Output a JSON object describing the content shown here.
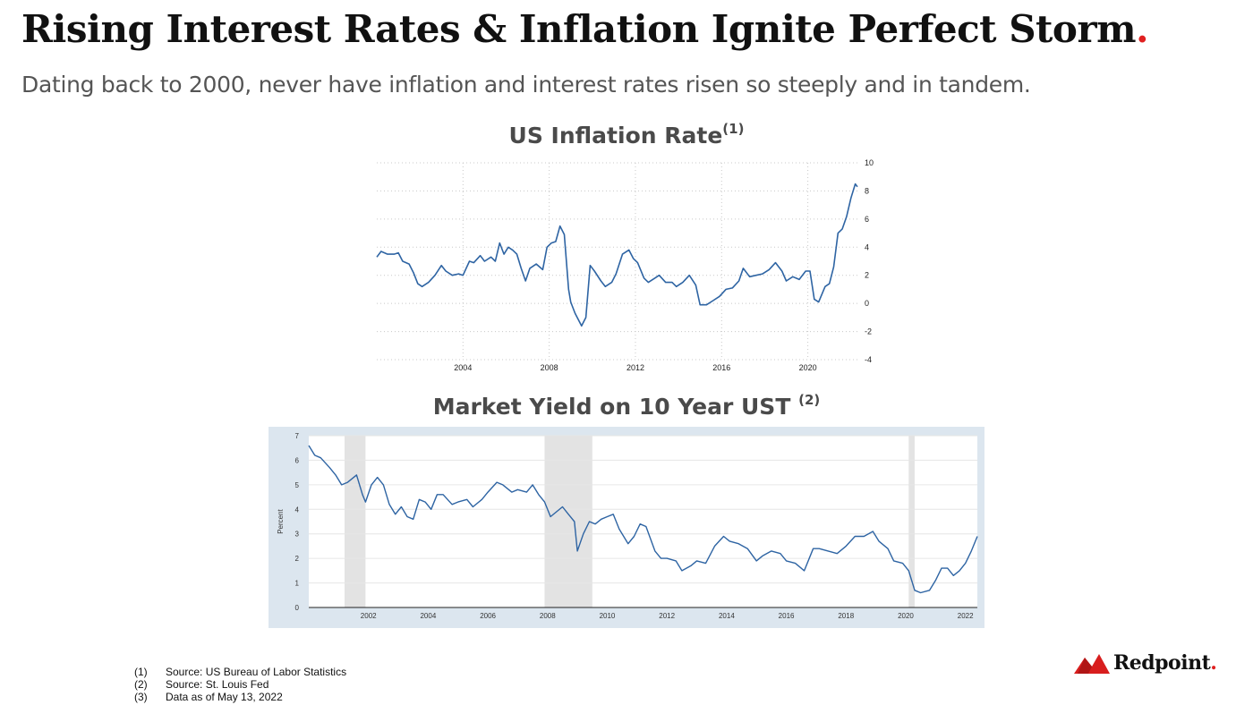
{
  "header": {
    "title": "Rising Interest Rates & Inflation Ignite Perfect Storm",
    "title_dot": ".",
    "subtitle": "Dating back to 2000, never have inflation and interest rates risen so steeply and in tandem."
  },
  "colors": {
    "accent_red": "#e02020",
    "line_blue": "#2e64a3",
    "recession_gray": "#e3e3e3",
    "yield_frame": "#dce6ef"
  },
  "chart_data": [
    {
      "type": "line",
      "title": "US Inflation Rate",
      "title_note": "(1)",
      "xlabel": "",
      "ylabel": "",
      "xlim": [
        2000.0,
        2022.3
      ],
      "ylim": [
        -4,
        10
      ],
      "xticks": [
        "2004",
        "2008",
        "2012",
        "2016",
        "2020"
      ],
      "yticks": [
        "10",
        "8",
        "6",
        "4",
        "2",
        "0",
        "-2",
        "-4"
      ],
      "y_axis_side": "right",
      "grid": "dotted horizontal",
      "series": [
        {
          "x": [
            2000.0,
            2000.2,
            2000.5,
            2000.8,
            2001.0,
            2001.2,
            2001.5,
            2001.7,
            2001.9,
            2002.1,
            2002.4,
            2002.7,
            2003.0,
            2003.2,
            2003.5,
            2003.8,
            2004.0,
            2004.3,
            2004.5,
            2004.8,
            2005.0,
            2005.3,
            2005.5,
            2005.7,
            2005.9,
            2006.1,
            2006.3,
            2006.5,
            2006.7,
            2006.9,
            2007.1,
            2007.4,
            2007.7,
            2007.9,
            2008.1,
            2008.3,
            2008.5,
            2008.7,
            2008.9,
            2009.0,
            2009.2,
            2009.5,
            2009.7,
            2009.9,
            2010.1,
            2010.4,
            2010.6,
            2010.9,
            2011.1,
            2011.4,
            2011.7,
            2011.9,
            2012.1,
            2012.4,
            2012.6,
            2012.9,
            2013.1,
            2013.4,
            2013.7,
            2013.9,
            2014.2,
            2014.5,
            2014.8,
            2015.0,
            2015.3,
            2015.6,
            2015.9,
            2016.2,
            2016.5,
            2016.8,
            2017.0,
            2017.3,
            2017.6,
            2017.9,
            2018.2,
            2018.5,
            2018.8,
            2019.0,
            2019.3,
            2019.6,
            2019.9,
            2020.1,
            2020.3,
            2020.5,
            2020.8,
            2021.0,
            2021.2,
            2021.4,
            2021.6,
            2021.8,
            2022.0,
            2022.2,
            2022.3
          ],
          "y": [
            3.3,
            3.7,
            3.5,
            3.5,
            3.6,
            3.0,
            2.8,
            2.2,
            1.4,
            1.2,
            1.5,
            2.0,
            2.7,
            2.3,
            2.0,
            2.1,
            2.0,
            3.0,
            2.9,
            3.4,
            3.0,
            3.3,
            3.0,
            4.3,
            3.5,
            4.0,
            3.8,
            3.5,
            2.5,
            1.6,
            2.5,
            2.8,
            2.4,
            4.0,
            4.3,
            4.4,
            5.5,
            4.9,
            1.0,
            0.1,
            -0.7,
            -1.6,
            -1.0,
            2.7,
            2.3,
            1.6,
            1.2,
            1.5,
            2.1,
            3.5,
            3.8,
            3.2,
            2.9,
            1.8,
            1.5,
            1.8,
            2.0,
            1.5,
            1.5,
            1.2,
            1.5,
            2.0,
            1.3,
            -0.1,
            -0.1,
            0.2,
            0.5,
            1.0,
            1.1,
            1.6,
            2.5,
            1.9,
            2.0,
            2.1,
            2.4,
            2.9,
            2.3,
            1.6,
            1.9,
            1.7,
            2.3,
            2.3,
            0.3,
            0.1,
            1.2,
            1.4,
            2.6,
            5.0,
            5.3,
            6.2,
            7.5,
            8.5,
            8.3
          ]
        }
      ]
    },
    {
      "type": "line",
      "title": "Market Yield on 10 Year UST",
      "title_note": "(2)",
      "xlabel": "",
      "ylabel": "Percent",
      "xlim": [
        2000.0,
        2022.4
      ],
      "ylim": [
        0,
        7
      ],
      "xticks": [
        "2002",
        "2004",
        "2006",
        "2008",
        "2010",
        "2012",
        "2014",
        "2016",
        "2018",
        "2020",
        "2022"
      ],
      "yticks": [
        "7",
        "6",
        "5",
        "4",
        "3",
        "2",
        "1",
        "0"
      ],
      "grid": "solid horizontal",
      "recession_bands": [
        [
          2001.2,
          2001.9
        ],
        [
          2007.9,
          2009.5
        ],
        [
          2020.1,
          2020.3
        ]
      ],
      "series": [
        {
          "x": [
            2000.0,
            2000.2,
            2000.4,
            2000.7,
            2000.9,
            2001.1,
            2001.3,
            2001.6,
            2001.8,
            2001.9,
            2002.1,
            2002.3,
            2002.5,
            2002.7,
            2002.9,
            2003.1,
            2003.3,
            2003.5,
            2003.7,
            2003.9,
            2004.1,
            2004.3,
            2004.5,
            2004.8,
            2005.0,
            2005.3,
            2005.5,
            2005.8,
            2006.0,
            2006.3,
            2006.5,
            2006.8,
            2007.0,
            2007.3,
            2007.5,
            2007.7,
            2007.9,
            2008.1,
            2008.3,
            2008.5,
            2008.7,
            2008.9,
            2009.0,
            2009.2,
            2009.4,
            2009.6,
            2009.8,
            2010.0,
            2010.2,
            2010.4,
            2010.7,
            2010.9,
            2011.1,
            2011.3,
            2011.6,
            2011.8,
            2012.0,
            2012.3,
            2012.5,
            2012.8,
            2013.0,
            2013.3,
            2013.6,
            2013.9,
            2014.1,
            2014.4,
            2014.7,
            2015.0,
            2015.2,
            2015.5,
            2015.8,
            2016.0,
            2016.3,
            2016.6,
            2016.9,
            2017.1,
            2017.4,
            2017.7,
            2018.0,
            2018.3,
            2018.6,
            2018.9,
            2019.1,
            2019.4,
            2019.6,
            2019.9,
            2020.1,
            2020.3,
            2020.5,
            2020.8,
            2021.0,
            2021.2,
            2021.4,
            2021.6,
            2021.8,
            2022.0,
            2022.2,
            2022.4
          ],
          "y": [
            6.6,
            6.2,
            6.1,
            5.7,
            5.4,
            5.0,
            5.1,
            5.4,
            4.6,
            4.3,
            5.0,
            5.3,
            5.0,
            4.2,
            3.8,
            4.1,
            3.7,
            3.6,
            4.4,
            4.3,
            4.0,
            4.6,
            4.6,
            4.2,
            4.3,
            4.4,
            4.1,
            4.4,
            4.7,
            5.1,
            5.0,
            4.7,
            4.8,
            4.7,
            5.0,
            4.6,
            4.3,
            3.7,
            3.9,
            4.1,
            3.8,
            3.5,
            2.3,
            3.0,
            3.5,
            3.4,
            3.6,
            3.7,
            3.8,
            3.2,
            2.6,
            2.9,
            3.4,
            3.3,
            2.3,
            2.0,
            2.0,
            1.9,
            1.5,
            1.7,
            1.9,
            1.8,
            2.5,
            2.9,
            2.7,
            2.6,
            2.4,
            1.9,
            2.1,
            2.3,
            2.2,
            1.9,
            1.8,
            1.5,
            2.4,
            2.4,
            2.3,
            2.2,
            2.5,
            2.9,
            2.9,
            3.1,
            2.7,
            2.4,
            1.9,
            1.8,
            1.5,
            0.7,
            0.6,
            0.7,
            1.1,
            1.6,
            1.6,
            1.3,
            1.5,
            1.8,
            2.3,
            2.9
          ]
        }
      ]
    }
  ],
  "footnotes": [
    {
      "num": "(1)",
      "text": "Source: US Bureau of Labor Statistics"
    },
    {
      "num": "(2)",
      "text": "Source: St. Louis Fed"
    },
    {
      "num": "(3)",
      "text": "Data as of May 13, 2022"
    }
  ],
  "logo": {
    "text": "Redpoint",
    "dot": "."
  }
}
